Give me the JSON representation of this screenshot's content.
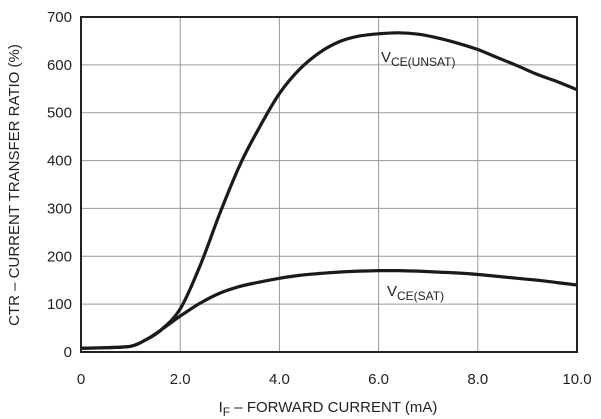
{
  "chart_data": {
    "type": "line",
    "xlabel": {
      "main": "I",
      "sub": "F",
      "rest": " – FORWARD CURRENT (mA)"
    },
    "ylabel": "CTR – CURRENT TRANSFER RATIO (%)",
    "xlim": [
      0,
      10
    ],
    "ylim": [
      0,
      700
    ],
    "xticks": [
      "0",
      "2.0",
      "4.0",
      "6.0",
      "8.0",
      "10.0"
    ],
    "xtick_values": [
      0,
      2,
      4,
      6,
      8,
      10
    ],
    "yticks": [
      "0",
      "100",
      "200",
      "300",
      "400",
      "500",
      "600",
      "700"
    ],
    "ytick_values": [
      0,
      100,
      200,
      300,
      400,
      500,
      600,
      700
    ],
    "grid": true,
    "series": [
      {
        "name": "V_CE(UNSAT)",
        "label_main": "V",
        "label_sub": "CE(UNSAT)",
        "x": [
          0,
          0.5,
          1.0,
          1.3,
          1.6,
          2.0,
          2.4,
          2.8,
          3.2,
          3.6,
          4.0,
          4.4,
          4.8,
          5.2,
          5.6,
          6.0,
          6.4,
          6.8,
          7.2,
          7.6,
          8.0,
          8.4,
          8.8,
          9.2,
          9.6,
          10.0
        ],
        "y": [
          8,
          9,
          12,
          25,
          45,
          90,
          180,
          290,
          390,
          470,
          540,
          590,
          625,
          648,
          660,
          665,
          667,
          664,
          656,
          645,
          632,
          615,
          598,
          580,
          565,
          548
        ]
      },
      {
        "name": "V_CE(SAT)",
        "label_main": "V",
        "label_sub": "CE(SAT)",
        "x": [
          0,
          0.5,
          1.0,
          1.3,
          1.6,
          2.0,
          2.4,
          2.8,
          3.2,
          3.6,
          4.0,
          4.4,
          4.8,
          5.2,
          5.6,
          6.0,
          6.4,
          6.8,
          7.2,
          7.6,
          8.0,
          8.4,
          8.8,
          9.2,
          9.6,
          10.0
        ],
        "y": [
          8,
          9,
          12,
          25,
          45,
          75,
          102,
          123,
          137,
          146,
          154,
          160,
          164,
          167,
          169,
          170,
          170,
          169,
          167,
          165,
          162,
          158,
          154,
          150,
          145,
          140
        ]
      }
    ]
  }
}
